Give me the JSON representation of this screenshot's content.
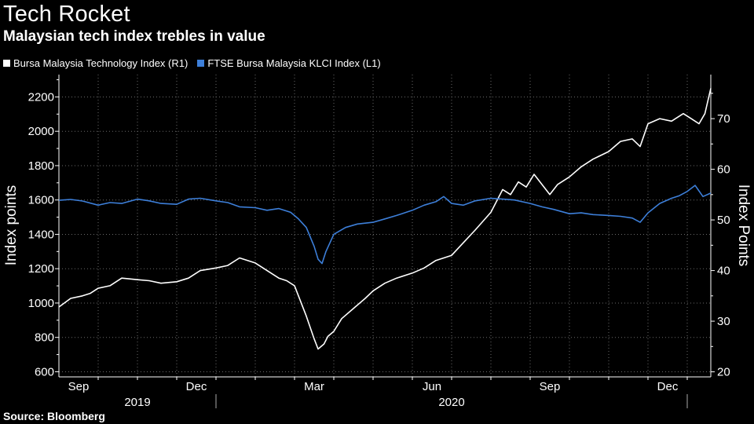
{
  "header": {
    "title": "Tech Rocket",
    "subtitle": "Malaysian tech index trebles in value"
  },
  "footer": {
    "source": "Source: Bloomberg"
  },
  "colors": {
    "background": "#000000",
    "tech": "#ffffff",
    "klci": "#3d7fd9",
    "grid": "#6a6a6a"
  },
  "chart_data": {
    "type": "line",
    "title": "Tech Rocket",
    "subtitle": "Malaysian tech index trebles in value",
    "legend": [
      {
        "label": "Bursa Malaysia Technology Index (R1)",
        "color": "#ffffff"
      },
      {
        "label": "FTSE Bursa Malaysia KLCI Index (L1)",
        "color": "#3d7fd9"
      }
    ],
    "legend_position": "top-left",
    "ylabel_left": "Index points",
    "ylabel_right": "Index Points",
    "ylim_left": [
      570,
      2330
    ],
    "ylim_right": [
      19,
      78.7
    ],
    "yticks_left": [
      "600",
      "800",
      "1000",
      "1200",
      "1400",
      "1600",
      "1800",
      "2000",
      "2200"
    ],
    "yticks_right": [
      "20",
      "30",
      "40",
      "50",
      "60",
      "70"
    ],
    "xlim_months": [
      0,
      16.6
    ],
    "xticks": [
      {
        "label": "Sep",
        "m": 0.5
      },
      {
        "label": "Dec",
        "m": 3.5
      },
      {
        "label": "Mar",
        "m": 6.5
      },
      {
        "label": "Jun",
        "m": 9.5
      },
      {
        "label": "Sep",
        "m": 12.5
      },
      {
        "label": "Dec",
        "m": 15.5
      }
    ],
    "year_labels": [
      {
        "label": "2019",
        "m": 2.0
      },
      {
        "label": "2020",
        "m": 10.0
      }
    ],
    "year_separators_m": [
      4.0,
      16.0
    ],
    "grid": true,
    "series": [
      {
        "name": "Bursa Malaysia Technology Index (R1)",
        "axis": "right",
        "m": [
          0.0,
          0.3,
          0.6,
          0.8,
          1.0,
          1.3,
          1.6,
          2.0,
          2.3,
          2.6,
          3.0,
          3.3,
          3.6,
          4.0,
          4.3,
          4.6,
          5.0,
          5.3,
          5.6,
          5.8,
          6.0,
          6.1,
          6.3,
          6.5,
          6.6,
          6.75,
          6.85,
          7.0,
          7.2,
          7.5,
          7.8,
          8.0,
          8.3,
          8.6,
          9.0,
          9.3,
          9.6,
          10.0,
          10.3,
          10.6,
          11.0,
          11.3,
          11.5,
          11.7,
          11.9,
          12.1,
          12.3,
          12.5,
          12.7,
          13.0,
          13.3,
          13.6,
          14.0,
          14.3,
          14.6,
          14.8,
          15.0,
          15.3,
          15.6,
          15.9,
          16.1,
          16.3,
          16.45,
          16.6
        ],
        "values": [
          32.8,
          34.5,
          35.0,
          35.5,
          36.5,
          37.0,
          38.5,
          38.2,
          38.0,
          37.5,
          37.8,
          38.5,
          40.0,
          40.5,
          41.0,
          42.5,
          41.5,
          40.0,
          38.5,
          38.0,
          37.0,
          35.0,
          31.0,
          26.5,
          24.5,
          25.5,
          27.0,
          28.0,
          30.5,
          32.5,
          34.5,
          36.0,
          37.5,
          38.5,
          39.5,
          40.5,
          42.0,
          43.0,
          45.5,
          48.0,
          51.5,
          56.0,
          55.0,
          57.5,
          56.5,
          59.0,
          57.0,
          55.0,
          57.0,
          58.5,
          60.5,
          62.0,
          63.5,
          65.5,
          66.0,
          64.5,
          69.0,
          70.0,
          69.5,
          71.0,
          70.0,
          69.0,
          71.0,
          76.0
        ]
      },
      {
        "name": "FTSE Bursa Malaysia KLCI Index (L1)",
        "axis": "left",
        "m": [
          0.0,
          0.3,
          0.6,
          1.0,
          1.3,
          1.6,
          2.0,
          2.3,
          2.6,
          3.0,
          3.3,
          3.6,
          4.0,
          4.3,
          4.6,
          5.0,
          5.3,
          5.6,
          5.9,
          6.1,
          6.3,
          6.5,
          6.6,
          6.7,
          6.8,
          7.0,
          7.3,
          7.6,
          8.0,
          8.3,
          8.6,
          9.0,
          9.3,
          9.6,
          9.8,
          10.0,
          10.3,
          10.6,
          11.0,
          11.3,
          11.6,
          12.0,
          12.3,
          12.6,
          13.0,
          13.3,
          13.6,
          14.0,
          14.3,
          14.6,
          14.8,
          15.0,
          15.3,
          15.6,
          15.8,
          16.0,
          16.2,
          16.4,
          16.6
        ],
        "values": [
          1598,
          1603,
          1594,
          1570,
          1585,
          1580,
          1605,
          1595,
          1580,
          1575,
          1605,
          1610,
          1595,
          1585,
          1560,
          1555,
          1540,
          1550,
          1528,
          1490,
          1440,
          1330,
          1255,
          1230,
          1300,
          1400,
          1440,
          1460,
          1470,
          1490,
          1510,
          1540,
          1570,
          1590,
          1620,
          1580,
          1570,
          1595,
          1610,
          1605,
          1600,
          1580,
          1560,
          1545,
          1520,
          1525,
          1515,
          1510,
          1505,
          1495,
          1470,
          1525,
          1580,
          1610,
          1625,
          1650,
          1685,
          1620,
          1640
        ]
      }
    ]
  }
}
